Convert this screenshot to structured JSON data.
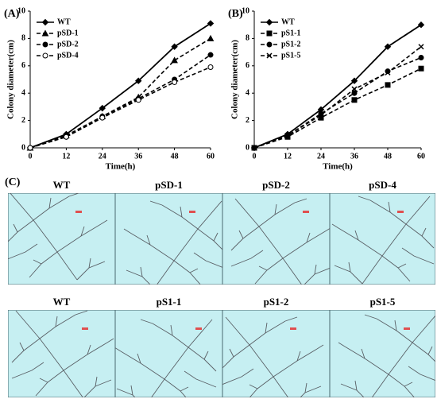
{
  "chart_data": [
    {
      "type": "line",
      "panel_label": "(A)",
      "xlabel": "Time(h)",
      "ylabel": "Colony diameter(cm)",
      "x": [
        0,
        12,
        24,
        36,
        48,
        60
      ],
      "xlim": [
        0,
        60
      ],
      "xticks": [
        0,
        12,
        24,
        36,
        48,
        60
      ],
      "ylim": [
        0,
        10
      ],
      "yticks": [
        0,
        2,
        4,
        6,
        8,
        10
      ],
      "legend": "upper left",
      "series": [
        {
          "name": "WT",
          "color": "#000000",
          "marker": "diamond",
          "dashed": false,
          "values": [
            0,
            1.0,
            2.9,
            4.9,
            7.4,
            9.1
          ]
        },
        {
          "name": "pSD-1",
          "color": "#000000",
          "marker": "triangle",
          "dashed": true,
          "values": [
            0,
            0.9,
            2.3,
            3.7,
            6.4,
            8.0
          ]
        },
        {
          "name": "pSD-2",
          "color": "#000000",
          "marker": "circle",
          "dashed": true,
          "values": [
            0,
            0.8,
            2.3,
            3.6,
            5.0,
            6.8
          ]
        },
        {
          "name": "pSD-4",
          "color": "#000000",
          "marker": "open-circle",
          "dashed": true,
          "values": [
            0,
            0.8,
            2.2,
            3.5,
            4.8,
            5.9
          ]
        }
      ]
    },
    {
      "type": "line",
      "panel_label": "(B)",
      "xlabel": "Time(h)",
      "ylabel": "Colony diameter(cm)",
      "x": [
        0,
        12,
        24,
        36,
        48,
        60
      ],
      "xlim": [
        0,
        60
      ],
      "xticks": [
        0,
        12,
        24,
        36,
        48,
        60
      ],
      "ylim": [
        0,
        10
      ],
      "yticks": [
        0,
        2,
        4,
        6,
        8,
        10
      ],
      "legend": "upper left",
      "series": [
        {
          "name": "WT",
          "color": "#000000",
          "marker": "diamond",
          "dashed": false,
          "values": [
            0,
            1.0,
            2.8,
            4.9,
            7.4,
            9.0
          ]
        },
        {
          "name": "pS1-1",
          "color": "#000000",
          "marker": "square",
          "dashed": true,
          "values": [
            0,
            0.8,
            2.2,
            3.5,
            4.6,
            5.8
          ]
        },
        {
          "name": "pS1-2",
          "color": "#000000",
          "marker": "circle",
          "dashed": true,
          "values": [
            0,
            0.9,
            2.5,
            4.0,
            5.6,
            6.6
          ]
        },
        {
          "name": "pS1-5",
          "color": "#000000",
          "marker": "cross",
          "dashed": true,
          "values": [
            0,
            0.9,
            2.4,
            4.3,
            5.5,
            7.4
          ]
        }
      ]
    }
  ],
  "panel_c": {
    "label": "(C)",
    "images": [
      "WT",
      "pSD-1",
      "pSD-2",
      "pSD-4",
      "WT",
      "pS1-1",
      "pS1-2",
      "pS1-5"
    ]
  }
}
